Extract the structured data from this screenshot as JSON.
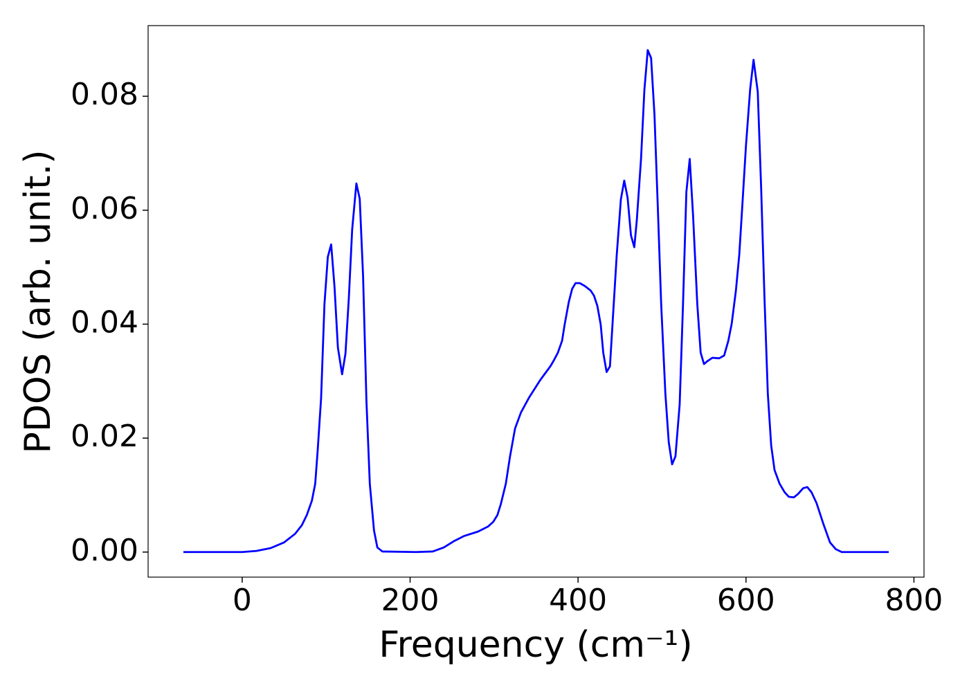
{
  "chart_data": {
    "type": "line",
    "xlabel": "Frequency (cm⁻¹)",
    "ylabel": "PDOS (arb. unit.)",
    "color": "#0000ff",
    "xlim": [
      -112,
      812
    ],
    "ylim": [
      -0.0044,
      0.0924
    ],
    "xticks": [
      0,
      200,
      400,
      600,
      800
    ],
    "yticks": [
      {
        "value": 0,
        "label": "0.00"
      },
      {
        "value": 0.02,
        "label": "0.02"
      },
      {
        "value": 0.04,
        "label": "0.04"
      },
      {
        "value": 0.06,
        "label": "0.06"
      },
      {
        "value": 0.08,
        "label": "0.08"
      }
    ],
    "x": [
      -70,
      0,
      17,
      34,
      50,
      63,
      71,
      77,
      83,
      87,
      90,
      94,
      98,
      102,
      106,
      110,
      114,
      119,
      123,
      127,
      131,
      136,
      140,
      144,
      148,
      152,
      157,
      161,
      167,
      207,
      227,
      240,
      252,
      264,
      281,
      293,
      299,
      304,
      308,
      314,
      319,
      325,
      332,
      342,
      355,
      367,
      371,
      376,
      381,
      384,
      389,
      393,
      397,
      402,
      408,
      415,
      419,
      423,
      427,
      430,
      434,
      438,
      441,
      446,
      451,
      455,
      459,
      463,
      467,
      470,
      475,
      479,
      483,
      487,
      491,
      495,
      499,
      504,
      508,
      512,
      516,
      521,
      525,
      529,
      533,
      537,
      542,
      546,
      550,
      554,
      560,
      568,
      574,
      579,
      583,
      588,
      592,
      596,
      600,
      605,
      609,
      614,
      618,
      622,
      626,
      630,
      634,
      640,
      646,
      651,
      657,
      662,
      668,
      673,
      678,
      684,
      692,
      700,
      707,
      714,
      770
    ],
    "values": [
      0,
      0,
      0.0002,
      0.0007,
      0.0017,
      0.0032,
      0.0047,
      0.0065,
      0.009,
      0.012,
      0.018,
      0.027,
      0.0435,
      0.0518,
      0.054,
      0.0465,
      0.0359,
      0.0312,
      0.0348,
      0.0445,
      0.0566,
      0.0647,
      0.062,
      0.0484,
      0.0265,
      0.012,
      0.0038,
      0.0008,
      0.0001,
      0,
      0.0001,
      0.0008,
      0.0019,
      0.0028,
      0.0036,
      0.0045,
      0.0053,
      0.0065,
      0.0084,
      0.012,
      0.0168,
      0.0217,
      0.0245,
      0.0272,
      0.0302,
      0.0326,
      0.0336,
      0.035,
      0.0371,
      0.0399,
      0.0439,
      0.0462,
      0.0472,
      0.0472,
      0.0467,
      0.0459,
      0.045,
      0.0432,
      0.0399,
      0.035,
      0.0316,
      0.0326,
      0.0399,
      0.052,
      0.0619,
      0.0652,
      0.0622,
      0.0556,
      0.0535,
      0.0583,
      0.069,
      0.0811,
      0.0881,
      0.0867,
      0.0768,
      0.0605,
      0.0435,
      0.0278,
      0.0193,
      0.0154,
      0.0168,
      0.0259,
      0.0435,
      0.0632,
      0.069,
      0.059,
      0.0435,
      0.035,
      0.033,
      0.0335,
      0.0341,
      0.034,
      0.0345,
      0.0371,
      0.0401,
      0.0459,
      0.0522,
      0.0617,
      0.0714,
      0.0813,
      0.0864,
      0.0808,
      0.0641,
      0.0447,
      0.0278,
      0.0187,
      0.0144,
      0.012,
      0.0105,
      0.0097,
      0.0096,
      0.0102,
      0.0112,
      0.0114,
      0.0105,
      0.0086,
      0.005,
      0.0017,
      0.0005,
      0,
      0
    ]
  }
}
